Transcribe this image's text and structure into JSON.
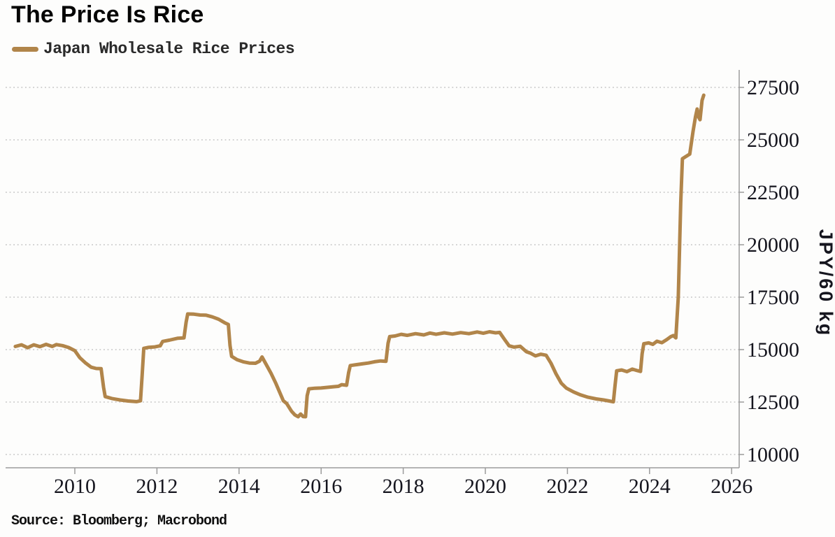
{
  "header": {
    "title": "The Price Is Rice"
  },
  "legend": {
    "label": "Japan Wholesale Rice Prices",
    "swatch_color": "#B1854A"
  },
  "footer": {
    "source": "Source: Bloomberg; Macrobond"
  },
  "chart_data": {
    "type": "line",
    "title": "The Price Is Rice",
    "xlabel": "",
    "ylabel": "JPY/60 kg",
    "legend_entries": [
      "Japan Wholesale Rice Prices"
    ],
    "legend_position": "top-left",
    "grid": "dotted horizontal gridlines",
    "line_color": "#B1854A",
    "axis_color": "#9b9b9b",
    "label_color": "#15151e",
    "x_ticks": [
      2010,
      2012,
      2014,
      2016,
      2018,
      2020,
      2022,
      2024,
      2026
    ],
    "y_ticks": [
      10000,
      12500,
      15000,
      17500,
      20000,
      22500,
      25000,
      27500
    ],
    "xlim": [
      2008.3,
      2026.2
    ],
    "ylim": [
      9400,
      28300
    ],
    "series": [
      {
        "name": "Japan Wholesale Rice Prices",
        "unit": "JPY/60 kg",
        "points": [
          [
            2008.55,
            15150
          ],
          [
            2008.7,
            15230
          ],
          [
            2008.85,
            15090
          ],
          [
            2009.0,
            15230
          ],
          [
            2009.15,
            15140
          ],
          [
            2009.3,
            15250
          ],
          [
            2009.45,
            15150
          ],
          [
            2009.55,
            15240
          ],
          [
            2009.7,
            15190
          ],
          [
            2009.85,
            15100
          ],
          [
            2010.0,
            14950
          ],
          [
            2010.12,
            14620
          ],
          [
            2010.25,
            14380
          ],
          [
            2010.4,
            14160
          ],
          [
            2010.52,
            14100
          ],
          [
            2010.64,
            14090
          ],
          [
            2010.7,
            13200
          ],
          [
            2010.74,
            12760
          ],
          [
            2010.9,
            12670
          ],
          [
            2011.1,
            12600
          ],
          [
            2011.3,
            12550
          ],
          [
            2011.5,
            12520
          ],
          [
            2011.6,
            12560
          ],
          [
            2011.64,
            13800
          ],
          [
            2011.68,
            15060
          ],
          [
            2011.8,
            15110
          ],
          [
            2011.95,
            15130
          ],
          [
            2012.08,
            15180
          ],
          [
            2012.14,
            15390
          ],
          [
            2012.3,
            15450
          ],
          [
            2012.5,
            15540
          ],
          [
            2012.66,
            15560
          ],
          [
            2012.71,
            16300
          ],
          [
            2012.75,
            16700
          ],
          [
            2012.9,
            16690
          ],
          [
            2013.05,
            16650
          ],
          [
            2013.2,
            16640
          ],
          [
            2013.35,
            16560
          ],
          [
            2013.5,
            16450
          ],
          [
            2013.65,
            16280
          ],
          [
            2013.74,
            16200
          ],
          [
            2013.78,
            15200
          ],
          [
            2013.82,
            14680
          ],
          [
            2013.95,
            14520
          ],
          [
            2014.1,
            14420
          ],
          [
            2014.25,
            14360
          ],
          [
            2014.4,
            14350
          ],
          [
            2014.5,
            14450
          ],
          [
            2014.56,
            14650
          ],
          [
            2014.66,
            14300
          ],
          [
            2014.78,
            13870
          ],
          [
            2014.9,
            13380
          ],
          [
            2015.0,
            12920
          ],
          [
            2015.08,
            12560
          ],
          [
            2015.16,
            12430
          ],
          [
            2015.28,
            12060
          ],
          [
            2015.36,
            11890
          ],
          [
            2015.44,
            11800
          ],
          [
            2015.5,
            11930
          ],
          [
            2015.56,
            11810
          ],
          [
            2015.62,
            11800
          ],
          [
            2015.66,
            12800
          ],
          [
            2015.7,
            13130
          ],
          [
            2015.85,
            13160
          ],
          [
            2016.0,
            13170
          ],
          [
            2016.15,
            13200
          ],
          [
            2016.3,
            13230
          ],
          [
            2016.42,
            13250
          ],
          [
            2016.5,
            13330
          ],
          [
            2016.62,
            13300
          ],
          [
            2016.67,
            13900
          ],
          [
            2016.71,
            14240
          ],
          [
            2016.85,
            14280
          ],
          [
            2017.0,
            14320
          ],
          [
            2017.15,
            14360
          ],
          [
            2017.3,
            14420
          ],
          [
            2017.45,
            14460
          ],
          [
            2017.58,
            14440
          ],
          [
            2017.63,
            15300
          ],
          [
            2017.67,
            15620
          ],
          [
            2017.8,
            15650
          ],
          [
            2017.95,
            15730
          ],
          [
            2018.1,
            15680
          ],
          [
            2018.3,
            15760
          ],
          [
            2018.5,
            15700
          ],
          [
            2018.65,
            15790
          ],
          [
            2018.8,
            15730
          ],
          [
            2019.0,
            15800
          ],
          [
            2019.2,
            15740
          ],
          [
            2019.4,
            15810
          ],
          [
            2019.6,
            15760
          ],
          [
            2019.8,
            15840
          ],
          [
            2019.95,
            15780
          ],
          [
            2020.1,
            15850
          ],
          [
            2020.25,
            15800
          ],
          [
            2020.35,
            15820
          ],
          [
            2020.48,
            15450
          ],
          [
            2020.58,
            15180
          ],
          [
            2020.7,
            15120
          ],
          [
            2020.85,
            15160
          ],
          [
            2021.0,
            14900
          ],
          [
            2021.1,
            14830
          ],
          [
            2021.22,
            14700
          ],
          [
            2021.35,
            14780
          ],
          [
            2021.48,
            14730
          ],
          [
            2021.6,
            14350
          ],
          [
            2021.72,
            13850
          ],
          [
            2021.85,
            13400
          ],
          [
            2021.97,
            13170
          ],
          [
            2022.15,
            12980
          ],
          [
            2022.32,
            12840
          ],
          [
            2022.5,
            12730
          ],
          [
            2022.7,
            12650
          ],
          [
            2022.88,
            12600
          ],
          [
            2023.02,
            12550
          ],
          [
            2023.12,
            12510
          ],
          [
            2023.16,
            13300
          ],
          [
            2023.2,
            13990
          ],
          [
            2023.32,
            14030
          ],
          [
            2023.45,
            13950
          ],
          [
            2023.58,
            14070
          ],
          [
            2023.7,
            14000
          ],
          [
            2023.78,
            13960
          ],
          [
            2023.82,
            14800
          ],
          [
            2023.86,
            15280
          ],
          [
            2023.98,
            15320
          ],
          [
            2024.08,
            15250
          ],
          [
            2024.18,
            15400
          ],
          [
            2024.3,
            15330
          ],
          [
            2024.42,
            15480
          ],
          [
            2024.52,
            15620
          ],
          [
            2024.58,
            15670
          ],
          [
            2024.64,
            15560
          ],
          [
            2024.7,
            17500
          ],
          [
            2024.76,
            22000
          ],
          [
            2024.8,
            24100
          ],
          [
            2024.88,
            24200
          ],
          [
            2024.98,
            24320
          ],
          [
            2025.06,
            25400
          ],
          [
            2025.12,
            26100
          ],
          [
            2025.16,
            26470
          ],
          [
            2025.2,
            26080
          ],
          [
            2025.23,
            25960
          ],
          [
            2025.28,
            26880
          ],
          [
            2025.32,
            27130
          ]
        ]
      }
    ]
  }
}
